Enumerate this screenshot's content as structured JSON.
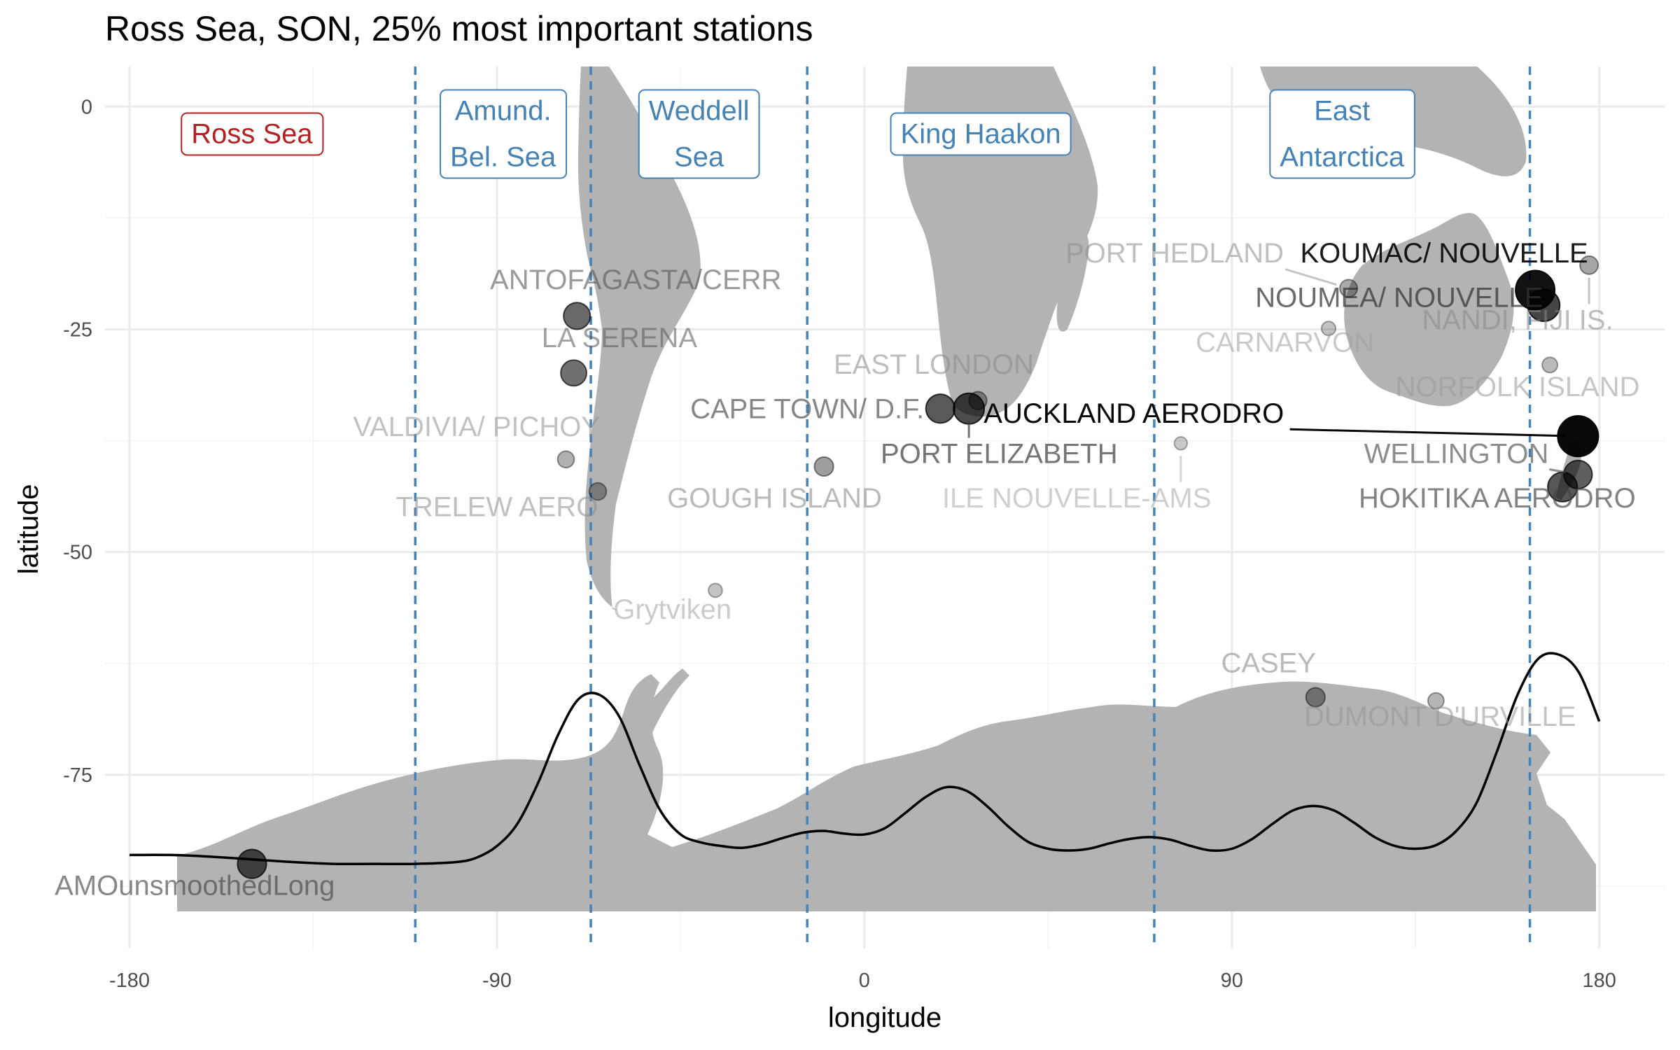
{
  "chart_data": {
    "type": "scatter",
    "title": "Ross Sea, SON, 25% most important stations",
    "xlabel": "longitude",
    "ylabel": "latitude",
    "xlim": [
      -186,
      196
    ],
    "ylim": [
      -94.5,
      4.5
    ],
    "x_ticks": [
      -180,
      -90,
      0,
      90,
      180
    ],
    "x_tick_labels": [
      "-180",
      "-90",
      "0",
      "90",
      "180"
    ],
    "y_ticks": [
      0,
      -25,
      -50,
      -75
    ],
    "y_tick_labels": [
      "0",
      "-25",
      "-50",
      "-75"
    ],
    "grid": true,
    "boundaries_lon": [
      -110,
      -67,
      -14,
      71,
      163
    ],
    "boundary_color": "#4682b4",
    "regions": [
      {
        "lines": [
          "Ross Sea"
        ],
        "lon": -150,
        "lat": -3,
        "color": "#b22222"
      },
      {
        "lines": [
          "Amund.",
          "Bel. Sea"
        ],
        "lon": -88.5,
        "lat": -3,
        "color": "#4682b4"
      },
      {
        "lines": [
          "Weddell",
          "Sea"
        ],
        "lon": -40.5,
        "lat": -3,
        "color": "#4682b4"
      },
      {
        "lines": [
          "King Haakon"
        ],
        "lon": 28.5,
        "lat": -3,
        "color": "#4682b4"
      },
      {
        "lines": [
          "East",
          "Antarctica"
        ],
        "lon": 117,
        "lat": -3,
        "color": "#4682b4"
      }
    ],
    "stations": [
      {
        "name": "AMOunsmoothedLong",
        "lon": -150,
        "lat": -85,
        "importance": 0.62,
        "label_lon": -164,
        "label_lat": -88.5
      },
      {
        "name": "ANTOFAGASTA/CERR",
        "lon": -70.4,
        "lat": -23.5,
        "importance": 0.55,
        "label_lon": -56,
        "label_lat": -20.5
      },
      {
        "name": "LA SERENA",
        "lon": -71.2,
        "lat": -29.9,
        "importance": 0.52,
        "label_lon": -60,
        "label_lat": -27
      },
      {
        "name": "VALDIVIA/ PICHOY",
        "lon": -73.1,
        "lat": -39.6,
        "importance": 0.22,
        "label_lon": -95,
        "label_lat": -37
      },
      {
        "name": "TRELEW AERO",
        "lon": -65.3,
        "lat": -43.2,
        "importance": 0.24,
        "label_lon": -90,
        "label_lat": -46
      },
      {
        "name": "Grytviken",
        "lon": -36.5,
        "lat": -54.3,
        "importance": 0.13,
        "label_lon": -47,
        "label_lat": -57.5
      },
      {
        "name": "GOUGH ISLAND",
        "lon": -9.9,
        "lat": -40.4,
        "importance": 0.3,
        "label_lon": -22,
        "label_lat": -45
      },
      {
        "name": "EAST LONDON",
        "lon": 27.8,
        "lat": -33.0,
        "importance": 0.26,
        "label_lon": 17,
        "label_lat": -30
      },
      {
        "name": "CAPE TOWN/ D.F.",
        "lon": 18.6,
        "lat": -33.9,
        "importance": 0.62,
        "label_lon": -14,
        "label_lat": -35
      },
      {
        "name": "PORT ELIZABETH",
        "lon": 25.6,
        "lat": -33.9,
        "importance": 0.68,
        "label_lon": 33,
        "label_lat": -40
      },
      {
        "name": "AUCKLAND AERODRO",
        "lon": 174.8,
        "lat": -37.0,
        "importance": 1.0,
        "label_lon": 66,
        "label_lat": -35.5
      },
      {
        "name": "ILE NOUVELLE-AMS",
        "lon": 77.5,
        "lat": -37.8,
        "importance": 0.1,
        "label_lon": 52,
        "label_lat": -45
      },
      {
        "name": "PORT HEDLAND",
        "lon": 118.6,
        "lat": -20.4,
        "importance": 0.25,
        "label_lon": 76,
        "label_lat": -17.5
      },
      {
        "name": "CARNARVON",
        "lon": 113.7,
        "lat": -24.9,
        "importance": 0.14,
        "label_lon": 103,
        "label_lat": -27.5
      },
      {
        "name": "KOUMAC/ NOUVELLE",
        "lon": 164.3,
        "lat": -20.6,
        "importance": 0.95,
        "label_lon": 142,
        "label_lat": -17.5
      },
      {
        "name": "NOUMEA/ NOUVELLE",
        "lon": 166.4,
        "lat": -22.3,
        "importance": 0.72,
        "label_lon": 131,
        "label_lat": -22.5
      },
      {
        "name": "NANDI, FIJI IS.",
        "lon": 177.5,
        "lat": -17.8,
        "importance": 0.27,
        "label_lon": 160,
        "label_lat": -25
      },
      {
        "name": "NORFOLK ISLAND",
        "lon": 167.9,
        "lat": -29.0,
        "importance": 0.18,
        "label_lon": 160,
        "label_lat": -32.5
      },
      {
        "name": "WELLINGTON",
        "lon": 174.8,
        "lat": -41.3,
        "importance": 0.6,
        "label_lon": 145,
        "label_lat": -40
      },
      {
        "name": "HOKITIKA AERODRO",
        "lon": 171.0,
        "lat": -42.7,
        "importance": 0.64,
        "label_lon": 155,
        "label_lat": -45
      },
      {
        "name": "CASEY",
        "lon": 110.5,
        "lat": -66.3,
        "importance": 0.3,
        "label_lon": 99,
        "label_lat": -63.5
      },
      {
        "name": "DUMONT D'URVILLE",
        "lon": 140.0,
        "lat": -66.7,
        "importance": 0.2,
        "label_lon": 141,
        "label_lat": -69.5
      }
    ],
    "curve": {
      "lon": [
        -180,
        -170,
        -160,
        -150,
        -140,
        -130,
        -120,
        -110,
        -100,
        -95,
        -90,
        -85,
        -80,
        -75,
        -70,
        -65,
        -60,
        -55,
        -50,
        -45,
        -40,
        -35,
        -30,
        -25,
        -20,
        -15,
        -10,
        -5,
        0,
        5,
        10,
        15,
        20,
        25,
        30,
        35,
        40,
        45,
        50,
        55,
        60,
        65,
        70,
        75,
        80,
        85,
        90,
        95,
        100,
        105,
        110,
        115,
        120,
        125,
        130,
        135,
        140,
        145,
        150,
        155,
        160,
        165,
        170,
        175,
        180
      ],
      "lat": [
        -84,
        -84,
        -84.2,
        -84.5,
        -84.8,
        -85,
        -85,
        -85,
        -84.8,
        -84.3,
        -83,
        -80.5,
        -76,
        -70.5,
        -66.5,
        -66,
        -68.5,
        -74,
        -79,
        -81.7,
        -82.6,
        -83,
        -83.2,
        -82.8,
        -82.1,
        -81.5,
        -81.3,
        -81.6,
        -81.7,
        -81,
        -79.3,
        -77.5,
        -76.4,
        -76.8,
        -78.5,
        -80.7,
        -82.5,
        -83.3,
        -83.5,
        -83.3,
        -82.7,
        -82.2,
        -82,
        -82.3,
        -83,
        -83.5,
        -83.3,
        -82.2,
        -80.5,
        -79,
        -78.5,
        -79,
        -80.4,
        -82,
        -83,
        -83.3,
        -82.9,
        -81.3,
        -78.1,
        -72.3,
        -66,
        -62,
        -61.5,
        -63.5,
        -69
      ]
    }
  }
}
